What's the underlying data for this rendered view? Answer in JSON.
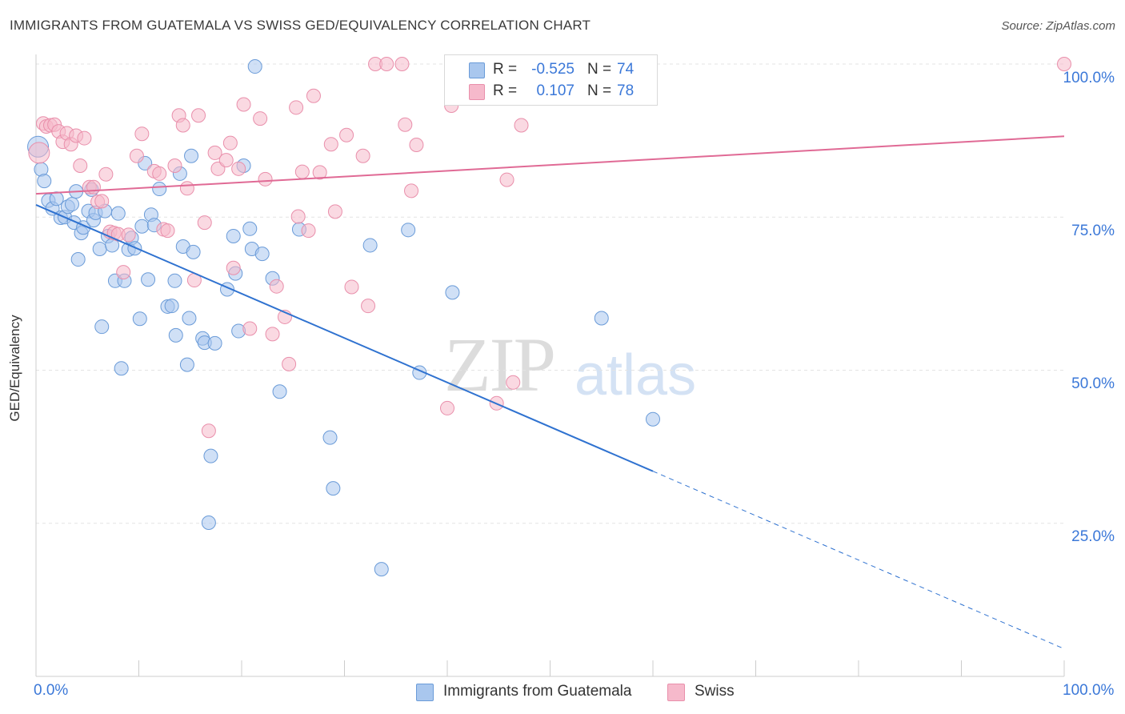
{
  "header": {
    "title": "IMMIGRANTS FROM GUATEMALA VS SWISS GED/EQUIVALENCY CORRELATION CHART",
    "source": "Source: ZipAtlas.com"
  },
  "watermark": {
    "zip": "ZIP",
    "atlas": "atlas"
  },
  "colors": {
    "blue_fill": "#a9c7ee",
    "blue_stroke": "#6a9bd8",
    "blue_line": "#2f72d0",
    "pink_fill": "#f6b9cb",
    "pink_stroke": "#e98fab",
    "pink_line": "#e06a95",
    "tick_text": "#3b78d8",
    "grid": "#e3e3e3"
  },
  "legend": {
    "r_label": "R =",
    "n_label": "N =",
    "rows": [
      {
        "r": "-0.525",
        "n": "74"
      },
      {
        "r": "0.107",
        "n": "78"
      }
    ]
  },
  "chart_data": {
    "type": "scatter",
    "title": "IMMIGRANTS FROM GUATEMALA VS SWISS GED/EQUIVALENCY CORRELATION CHART",
    "xlabel": "",
    "ylabel": "GED/Equivalency",
    "xlim": [
      0,
      100
    ],
    "ylim": [
      0,
      100
    ],
    "x_tick_labels": [
      "0.0%",
      "100.0%"
    ],
    "y_ticks": [
      25,
      50,
      75,
      100
    ],
    "y_tick_labels": [
      "25.0%",
      "50.0%",
      "75.0%",
      "100.0%"
    ],
    "grid": true,
    "legend_position": "top-center",
    "series": [
      {
        "name": "Immigrants from Guatemala",
        "r": -0.525,
        "n": 74,
        "trend": {
          "x0": 0,
          "y0": 77.0,
          "x1": 60,
          "y1": 33.5,
          "dash_x1": 100,
          "dash_y1": 4.5
        },
        "points": [
          [
            0.2,
            86.5
          ],
          [
            0.5,
            82.8
          ],
          [
            0.8,
            80.9
          ],
          [
            1.2,
            77.7
          ],
          [
            1.6,
            76.4
          ],
          [
            2.0,
            78.0
          ],
          [
            2.4,
            74.9
          ],
          [
            2.8,
            75.0
          ],
          [
            3.1,
            76.7
          ],
          [
            3.5,
            77.1
          ],
          [
            3.7,
            74.1
          ],
          [
            3.9,
            79.2
          ],
          [
            4.1,
            68.1
          ],
          [
            4.4,
            72.4
          ],
          [
            4.6,
            73.3
          ],
          [
            5.1,
            76.0
          ],
          [
            5.4,
            79.5
          ],
          [
            5.6,
            74.5
          ],
          [
            5.8,
            75.7
          ],
          [
            6.2,
            69.8
          ],
          [
            6.4,
            57.1
          ],
          [
            6.7,
            76.0
          ],
          [
            7.0,
            71.9
          ],
          [
            7.4,
            70.4
          ],
          [
            7.7,
            64.6
          ],
          [
            8.0,
            75.6
          ],
          [
            8.3,
            50.3
          ],
          [
            8.6,
            64.6
          ],
          [
            9.0,
            69.7
          ],
          [
            9.3,
            71.6
          ],
          [
            9.6,
            69.9
          ],
          [
            10.1,
            58.4
          ],
          [
            10.3,
            73.5
          ],
          [
            10.6,
            83.8
          ],
          [
            10.9,
            64.8
          ],
          [
            11.2,
            75.4
          ],
          [
            11.5,
            73.7
          ],
          [
            12.0,
            79.6
          ],
          [
            12.8,
            60.4
          ],
          [
            13.2,
            60.5
          ],
          [
            13.5,
            64.6
          ],
          [
            13.6,
            55.7
          ],
          [
            14.0,
            82.1
          ],
          [
            14.3,
            70.2
          ],
          [
            14.7,
            50.9
          ],
          [
            14.9,
            58.5
          ],
          [
            15.1,
            85.0
          ],
          [
            15.3,
            69.3
          ],
          [
            16.2,
            55.2
          ],
          [
            16.4,
            54.5
          ],
          [
            16.8,
            25.1
          ],
          [
            17.0,
            36.0
          ],
          [
            17.4,
            54.4
          ],
          [
            18.6,
            63.2
          ],
          [
            19.2,
            71.9
          ],
          [
            19.4,
            65.8
          ],
          [
            19.7,
            56.4
          ],
          [
            20.2,
            83.4
          ],
          [
            20.8,
            73.1
          ],
          [
            21.0,
            69.8
          ],
          [
            21.3,
            99.6
          ],
          [
            22.0,
            69.0
          ],
          [
            23.0,
            65.0
          ],
          [
            23.7,
            46.5
          ],
          [
            25.6,
            73.0
          ],
          [
            28.6,
            39.0
          ],
          [
            28.9,
            30.7
          ],
          [
            32.5,
            70.4
          ],
          [
            33.6,
            17.5
          ],
          [
            36.2,
            72.9
          ],
          [
            37.3,
            49.6
          ],
          [
            40.5,
            62.7
          ],
          [
            55.0,
            58.5
          ],
          [
            60.0,
            42.0
          ]
        ]
      },
      {
        "name": "Swiss",
        "r": 0.107,
        "n": 78,
        "trend": {
          "x0": 0,
          "y0": 78.8,
          "x1": 100,
          "y1": 88.2
        },
        "points": [
          [
            0.3,
            85.5
          ],
          [
            0.7,
            90.3
          ],
          [
            1.0,
            89.8
          ],
          [
            1.4,
            90.0
          ],
          [
            1.8,
            90.1
          ],
          [
            2.2,
            89.0
          ],
          [
            2.6,
            87.3
          ],
          [
            3.0,
            88.7
          ],
          [
            3.4,
            86.9
          ],
          [
            3.9,
            88.3
          ],
          [
            4.3,
            83.4
          ],
          [
            4.7,
            87.9
          ],
          [
            5.2,
            79.9
          ],
          [
            5.6,
            79.9
          ],
          [
            6.0,
            77.5
          ],
          [
            6.4,
            77.6
          ],
          [
            6.8,
            82.0
          ],
          [
            7.2,
            72.6
          ],
          [
            7.6,
            72.4
          ],
          [
            8.0,
            72.2
          ],
          [
            8.5,
            66.0
          ],
          [
            9.0,
            72.1
          ],
          [
            9.8,
            85.0
          ],
          [
            10.3,
            88.6
          ],
          [
            11.5,
            82.5
          ],
          [
            12.0,
            82.1
          ],
          [
            12.4,
            73.0
          ],
          [
            12.8,
            72.8
          ],
          [
            13.5,
            83.4
          ],
          [
            13.9,
            91.6
          ],
          [
            14.3,
            90.0
          ],
          [
            14.7,
            79.7
          ],
          [
            15.4,
            64.7
          ],
          [
            15.8,
            91.6
          ],
          [
            16.4,
            74.1
          ],
          [
            16.8,
            40.1
          ],
          [
            17.4,
            85.5
          ],
          [
            17.7,
            82.9
          ],
          [
            18.5,
            84.3
          ],
          [
            18.9,
            87.1
          ],
          [
            19.2,
            66.7
          ],
          [
            19.7,
            82.9
          ],
          [
            20.2,
            93.4
          ],
          [
            20.8,
            56.8
          ],
          [
            21.8,
            91.1
          ],
          [
            22.3,
            81.2
          ],
          [
            23.0,
            55.9
          ],
          [
            23.4,
            63.7
          ],
          [
            24.2,
            58.7
          ],
          [
            24.6,
            51.0
          ],
          [
            25.3,
            92.9
          ],
          [
            25.5,
            75.1
          ],
          [
            25.9,
            82.4
          ],
          [
            26.5,
            72.8
          ],
          [
            27.0,
            94.8
          ],
          [
            27.6,
            82.3
          ],
          [
            28.7,
            86.9
          ],
          [
            29.1,
            75.9
          ],
          [
            30.2,
            88.4
          ],
          [
            30.7,
            63.6
          ],
          [
            31.8,
            85.0
          ],
          [
            32.3,
            60.5
          ],
          [
            33.0,
            100.0
          ],
          [
            34.1,
            100.0
          ],
          [
            35.6,
            100.0
          ],
          [
            35.9,
            90.1
          ],
          [
            36.5,
            79.3
          ],
          [
            37.0,
            86.8
          ],
          [
            40.0,
            43.8
          ],
          [
            40.4,
            93.2
          ],
          [
            42.0,
            100.0
          ],
          [
            44.0,
            100.0
          ],
          [
            44.8,
            44.6
          ],
          [
            45.8,
            81.1
          ],
          [
            46.4,
            48.0
          ],
          [
            47.2,
            90.0
          ],
          [
            50.0,
            100.0
          ],
          [
            100.0,
            100.0
          ]
        ]
      }
    ]
  }
}
